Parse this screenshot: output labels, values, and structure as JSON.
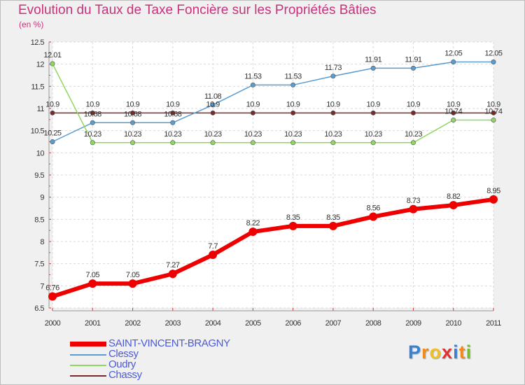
{
  "chart_data": {
    "type": "line",
    "title": "Evolution du Taux de Taxe Foncière sur les Propriétés Bâties",
    "ylabel": "(en %)",
    "xlabel": "",
    "categories": [
      "2000",
      "2001",
      "2002",
      "2003",
      "2004",
      "2005",
      "2006",
      "2007",
      "2008",
      "2009",
      "2010",
      "2011"
    ],
    "ylim": [
      6.5,
      12.5
    ],
    "yticks": [
      "6.5",
      "7",
      "7.5",
      "8",
      "8.5",
      "9",
      "9.5",
      "10",
      "10.5",
      "11",
      "11.5",
      "12",
      "12.5"
    ],
    "grid": true,
    "legend_position": "bottom-left",
    "series": [
      {
        "name": "Chassy",
        "color": "#7a2a2a",
        "values": [
          10.9,
          10.9,
          10.9,
          10.9,
          10.9,
          10.9,
          10.9,
          10.9,
          10.9,
          10.9,
          10.9,
          10.9
        ],
        "labels": [
          "10.9",
          "10.9",
          "10.9",
          "10.9",
          "10.9",
          "10.9",
          "10.9",
          "10.9",
          "10.9",
          "10.9",
          "10.9",
          "10.9"
        ]
      },
      {
        "name": "Clessy",
        "color": "#5a9bd0",
        "values": [
          10.25,
          10.68,
          10.68,
          10.68,
          11.08,
          11.53,
          11.53,
          11.73,
          11.91,
          11.91,
          12.05,
          12.05
        ],
        "labels": [
          "10.25",
          "10.68",
          "10.68",
          "10.68",
          "11.08",
          "11.53",
          "11.53",
          "11.73",
          "11.91",
          "11.91",
          "12.05",
          "12.05"
        ]
      },
      {
        "name": "Oudry",
        "color": "#8ed860",
        "values": [
          12.01,
          10.23,
          10.23,
          10.23,
          10.23,
          10.23,
          10.23,
          10.23,
          10.23,
          10.23,
          10.74,
          10.74
        ],
        "labels": [
          "12.01",
          "10.23",
          "10.23",
          "10.23",
          "10.23",
          "10.23",
          "10.23",
          "10.23",
          "10.23",
          "10.23",
          "10.74",
          "10.74"
        ]
      },
      {
        "name": "SAINT-VINCENT-BRAGNY",
        "color": "#ee0000",
        "values": [
          6.76,
          7.05,
          7.05,
          7.27,
          7.7,
          8.22,
          8.35,
          8.35,
          8.56,
          8.73,
          8.82,
          8.95
        ],
        "labels": [
          "6.76",
          "7.05",
          "7.05",
          "7.27",
          "7.7",
          "8.22",
          "8.35",
          "8.35",
          "8.56",
          "8.73",
          "8.82",
          "8.95"
        ]
      }
    ],
    "legend": [
      {
        "name": "SAINT-VINCENT-BRAGNY",
        "color": "#ee0000"
      },
      {
        "name": "Clessy",
        "color": "#5a9bd0"
      },
      {
        "name": "Oudry",
        "color": "#8ed860"
      },
      {
        "name": "Chassy",
        "color": "#7a2a2a"
      }
    ]
  },
  "logo": {
    "letters": [
      "P",
      "r",
      "o",
      "x",
      "i",
      "t",
      "i"
    ],
    "colors": [
      "#3a7fd0",
      "#f08a1a",
      "#f0c020",
      "#e03030",
      "#3a7fd0",
      "#f08a1a",
      "#7ab83a"
    ]
  }
}
